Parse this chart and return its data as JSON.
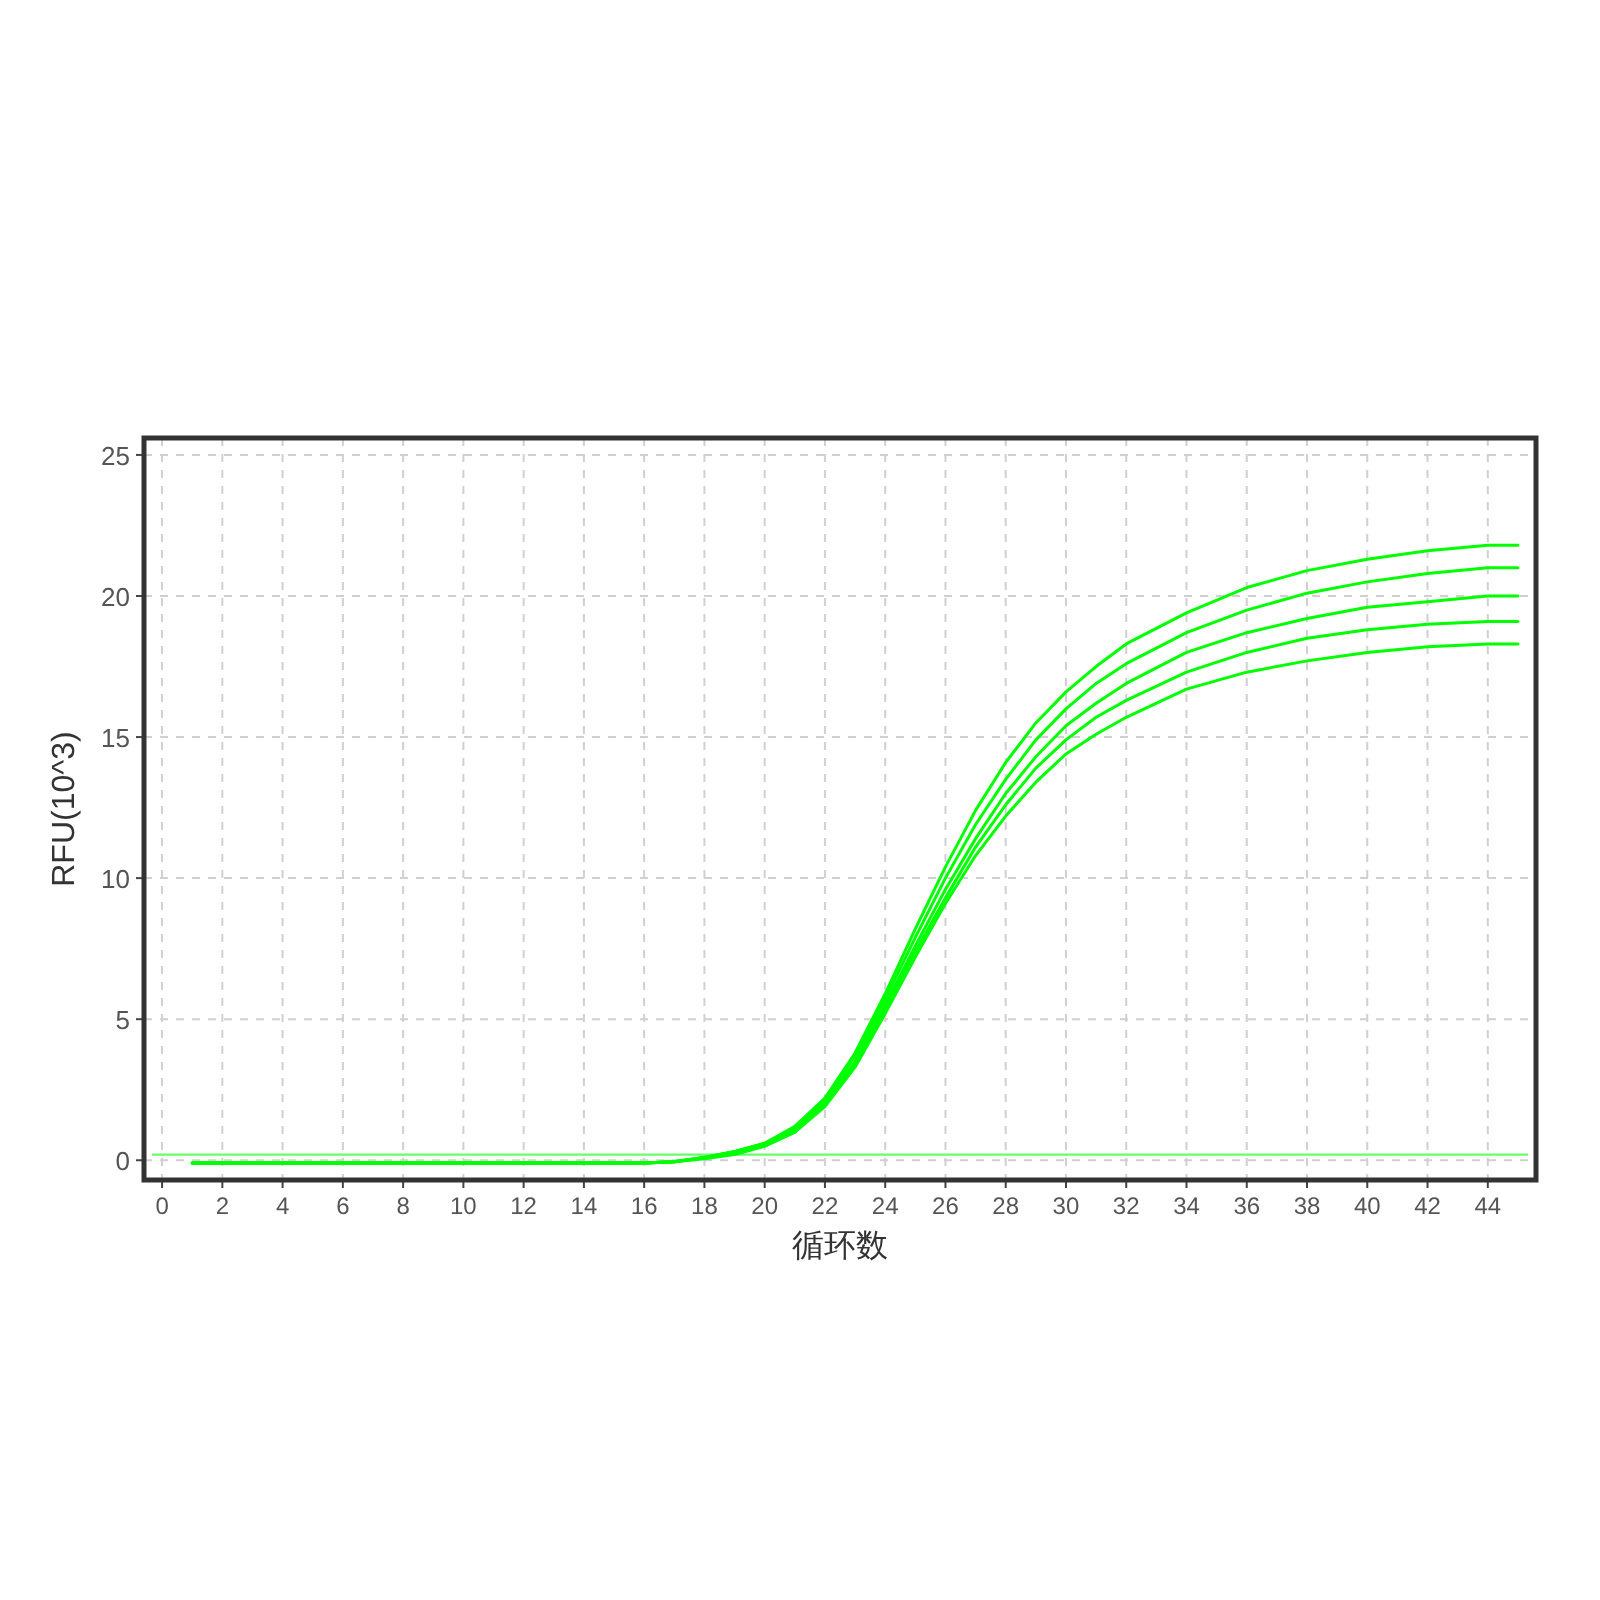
{
  "chart_data": {
    "type": "line",
    "xlabel": "循环数",
    "ylabel": "RFU(10^3)",
    "x": [
      1,
      4,
      8,
      12,
      16,
      17,
      18,
      19,
      20,
      21,
      22,
      23,
      24,
      25,
      26,
      27,
      28,
      29,
      30,
      31,
      32,
      34,
      36,
      38,
      40,
      42,
      44,
      45
    ],
    "series": [
      {
        "color": "#00ff00",
        "values": [
          -0.1,
          -0.1,
          -0.1,
          -0.1,
          -0.1,
          -0.05,
          0.1,
          0.3,
          0.6,
          1.2,
          2.2,
          3.8,
          5.9,
          8.2,
          10.4,
          12.4,
          14.1,
          15.5,
          16.6,
          17.5,
          18.3,
          19.4,
          20.3,
          20.9,
          21.3,
          21.6,
          21.8,
          21.8
        ]
      },
      {
        "color": "#00ff00",
        "values": [
          -0.1,
          -0.1,
          -0.1,
          -0.1,
          -0.1,
          -0.05,
          0.1,
          0.3,
          0.6,
          1.1,
          2.1,
          3.7,
          5.7,
          7.9,
          10.0,
          11.9,
          13.5,
          14.9,
          16.0,
          16.9,
          17.6,
          18.7,
          19.5,
          20.1,
          20.5,
          20.8,
          21.0,
          21.0
        ]
      },
      {
        "color": "#00ff00",
        "values": [
          -0.1,
          -0.1,
          -0.1,
          -0.1,
          -0.1,
          -0.05,
          0.1,
          0.3,
          0.6,
          1.1,
          2.0,
          3.5,
          5.5,
          7.6,
          9.6,
          11.4,
          13.0,
          14.3,
          15.4,
          16.2,
          16.9,
          18.0,
          18.7,
          19.2,
          19.6,
          19.8,
          20.0,
          20.0
        ]
      },
      {
        "color": "#00ff00",
        "values": [
          -0.1,
          -0.1,
          -0.1,
          -0.1,
          -0.1,
          -0.05,
          0.1,
          0.3,
          0.5,
          1.0,
          2.0,
          3.4,
          5.4,
          7.4,
          9.3,
          11.1,
          12.6,
          13.9,
          14.9,
          15.7,
          16.3,
          17.3,
          18.0,
          18.5,
          18.8,
          19.0,
          19.1,
          19.1
        ]
      },
      {
        "color": "#00ff00",
        "values": [
          -0.1,
          -0.1,
          -0.1,
          -0.1,
          -0.1,
          -0.05,
          0.05,
          0.2,
          0.5,
          1.0,
          1.9,
          3.3,
          5.2,
          7.2,
          9.1,
          10.8,
          12.2,
          13.4,
          14.4,
          15.1,
          15.7,
          16.7,
          17.3,
          17.7,
          18.0,
          18.2,
          18.3,
          18.3
        ]
      }
    ],
    "ref_lines": [
      {
        "axis": "y",
        "value": 0.2,
        "color": "#66ff66"
      }
    ],
    "xlim": [
      -0.6,
      45.6
    ],
    "ylim": [
      -0.7,
      25.6
    ],
    "xticks": [
      0,
      2,
      4,
      6,
      8,
      10,
      12,
      14,
      16,
      18,
      20,
      22,
      24,
      26,
      28,
      30,
      32,
      34,
      36,
      38,
      40,
      42,
      44
    ],
    "yticks": [
      0,
      5,
      10,
      15,
      20,
      25
    ],
    "grid": true
  }
}
